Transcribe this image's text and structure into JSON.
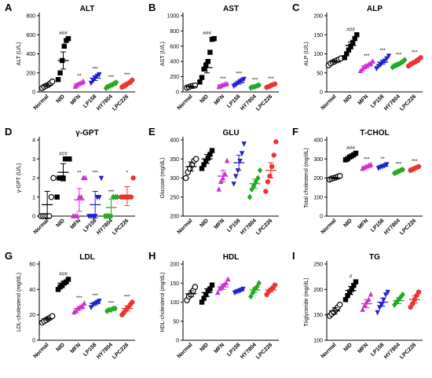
{
  "categories": [
    "Normal",
    "NID",
    "MFN",
    "LP158",
    "HY7804",
    "LPC226"
  ],
  "colors": [
    "#000000",
    "#000000",
    "#cc33cc",
    "#2222cc",
    "#22aa22",
    "#ee3333"
  ],
  "marker_icons": [
    "open-circle-icon",
    "filled-square-icon",
    "filled-triangle-up-icon",
    "filled-triangle-down-icon",
    "filled-diamond-icon",
    "filled-circle-icon"
  ],
  "chart_data": [
    {
      "letter": "A",
      "title": "ALT",
      "type": "scatter",
      "ylabel": "ALT (U/L)",
      "ylim": [
        0,
        800
      ],
      "ticks": [
        0,
        200,
        400,
        600,
        800
      ],
      "points": [
        [
          40,
          55,
          65,
          75,
          90,
          110
        ],
        [
          130,
          200,
          330,
          480,
          540,
          560
        ],
        [
          55,
          70,
          85,
          95,
          110
        ],
        [
          95,
          120,
          145,
          170,
          185
        ],
        [
          40,
          55,
          65,
          75,
          90,
          100
        ],
        [
          50,
          60,
          75,
          90,
          105,
          125
        ]
      ],
      "means": [
        70,
        330,
        85,
        145,
        70,
        85
      ],
      "sems": [
        15,
        90,
        12,
        25,
        10,
        15
      ],
      "sig": [
        "",
        "###",
        "**",
        "***",
        "***",
        "***"
      ]
    },
    {
      "letter": "B",
      "title": "AST",
      "type": "scatter",
      "ylabel": "AST (U/L)",
      "ylim": [
        0,
        1000
      ],
      "ticks": [
        0,
        200,
        400,
        600,
        800,
        1000
      ],
      "points": [
        [
          55,
          65,
          75,
          80,
          85
        ],
        [
          130,
          190,
          300,
          350,
          400,
          520,
          690,
          700
        ],
        [
          65,
          75,
          90,
          100,
          105
        ],
        [
          80,
          95,
          120,
          140,
          155,
          170
        ],
        [
          55,
          65,
          70,
          80,
          90
        ],
        [
          60,
          70,
          85,
          95,
          105
        ]
      ],
      "means": [
        70,
        320,
        90,
        120,
        70,
        85
      ],
      "sems": [
        10,
        70,
        12,
        18,
        8,
        10
      ],
      "sig": [
        "",
        "###",
        "***",
        "***",
        "***",
        "***"
      ]
    },
    {
      "letter": "C",
      "title": "ALP",
      "type": "scatter",
      "ylabel": "ALP (U/L)",
      "ylim": [
        0,
        200
      ],
      "ticks": [
        0,
        50,
        100,
        150,
        200
      ],
      "points": [
        [
          70,
          75,
          78,
          80,
          83,
          85,
          88
        ],
        [
          90,
          100,
          110,
          120,
          130,
          140,
          150
        ],
        [
          55,
          60,
          65,
          68,
          72,
          75,
          80
        ],
        [
          62,
          68,
          72,
          78,
          82,
          88,
          95
        ],
        [
          65,
          68,
          70,
          73,
          76,
          80,
          84
        ],
        [
          68,
          72,
          75,
          78,
          82,
          86,
          90
        ]
      ],
      "means": [
        80,
        122,
        68,
        78,
        74,
        78
      ],
      "sems": [
        3,
        9,
        4,
        5,
        3,
        4
      ],
      "sig": [
        "",
        "###",
        "***",
        "***",
        "***",
        "***"
      ]
    },
    {
      "letter": "D",
      "title": "γ-GPT",
      "type": "scatter",
      "ylabel": "γ-GPT (U/L)",
      "ylim": [
        0,
        4
      ],
      "ticks": [
        0,
        1,
        2,
        3,
        4
      ],
      "points": [
        [
          0,
          0,
          0,
          0,
          0,
          1,
          2
        ],
        [
          1,
          2,
          2,
          2,
          3,
          3,
          3
        ],
        [
          0,
          0,
          0,
          1,
          1,
          2,
          2
        ],
        [
          0,
          0,
          0,
          0,
          1,
          1,
          2
        ],
        [
          0,
          0,
          0,
          0,
          1,
          1,
          1
        ],
        [
          1,
          1,
          1,
          1,
          1,
          1,
          2
        ]
      ],
      "means": [
        0.6,
        2.3,
        0.85,
        0.6,
        0.45,
        1.05
      ],
      "sems": [
        0.7,
        0.45,
        0.6,
        0.7,
        0.45,
        0.5
      ],
      "sig": [
        "",
        "###",
        "**",
        "***",
        "***",
        "*"
      ]
    },
    {
      "letter": "E",
      "title": "GLU",
      "type": "scatter",
      "ylabel": "Glucose (mg/dL)",
      "ylim": [
        200,
        400
      ],
      "ticks": [
        200,
        250,
        300,
        350,
        400
      ],
      "points": [
        [
          300,
          315,
          325,
          335,
          345,
          350
        ],
        [
          325,
          335,
          345,
          352,
          362,
          372
        ],
        [
          270,
          290,
          300,
          310,
          345
        ],
        [
          285,
          305,
          320,
          345,
          365,
          390
        ],
        [
          250,
          270,
          280,
          290,
          300,
          320
        ],
        [
          265,
          290,
          305,
          330,
          360,
          395
        ]
      ],
      "means": [
        330,
        350,
        305,
        340,
        285,
        320
      ],
      "sems": [
        12,
        12,
        15,
        20,
        12,
        20
      ],
      "sig": [
        "",
        "",
        "",
        "",
        "",
        ""
      ]
    },
    {
      "letter": "F",
      "title": "T-CHOL",
      "type": "scatter",
      "ylabel": "Total cholesterol (mg/dL)",
      "ylim": [
        0,
        400
      ],
      "ticks": [
        0,
        100,
        200,
        300,
        400
      ],
      "points": [
        [
          192,
          197,
          200,
          203,
          207,
          211
        ],
        [
          295,
          300,
          310,
          316,
          322,
          330
        ],
        [
          248,
          255,
          260,
          265,
          270
        ],
        [
          252,
          258,
          262,
          266,
          272
        ],
        [
          225,
          230,
          235,
          240,
          245
        ],
        [
          240,
          245,
          250,
          255,
          260
        ]
      ],
      "means": [
        200,
        312,
        258,
        262,
        235,
        252
      ],
      "sems": [
        4,
        8,
        5,
        5,
        4,
        5
      ],
      "sig": [
        "",
        "###",
        "***",
        "**",
        "***",
        "***"
      ]
    },
    {
      "letter": "G",
      "title": "LDL",
      "type": "scatter",
      "ylabel": "LDL-cholesterol (mg/dL)",
      "ylim": [
        0,
        60
      ],
      "ticks": [
        0,
        20,
        40,
        60
      ],
      "points": [
        [
          14,
          15,
          16,
          17,
          18,
          19
        ],
        [
          40,
          42,
          43,
          45,
          46,
          48
        ],
        [
          22,
          23,
          25,
          26,
          27,
          29
        ],
        [
          26,
          28,
          29,
          30,
          31
        ],
        [
          23,
          24,
          24,
          25,
          25
        ],
        [
          20,
          22,
          24,
          26,
          28,
          30
        ]
      ],
      "means": [
        17,
        45,
        25,
        29,
        24,
        25
      ],
      "sems": [
        1,
        1.5,
        1.5,
        1.2,
        0.5,
        2
      ],
      "sig": [
        "",
        "###",
        "***",
        "***",
        "***",
        "***"
      ]
    },
    {
      "letter": "H",
      "title": "HDL",
      "type": "scatter",
      "ylabel": "HDL-cholesterol (mg/dL)",
      "ylim": [
        0,
        200
      ],
      "ticks": [
        0,
        50,
        100,
        150,
        200
      ],
      "points": [
        [
          105,
          115,
          120,
          130,
          140
        ],
        [
          100,
          110,
          120,
          130,
          135,
          145
        ],
        [
          125,
          135,
          140,
          145,
          150,
          160
        ],
        [
          125,
          128,
          130,
          132,
          135
        ],
        [
          115,
          125,
          135,
          140,
          150
        ],
        [
          120,
          128,
          133,
          138,
          145
        ]
      ],
      "means": [
        122,
        125,
        140,
        130,
        132,
        132
      ],
      "sems": [
        8,
        10,
        7,
        3,
        6,
        5
      ],
      "sig": [
        "",
        "",
        "",
        "",
        "",
        ""
      ]
    },
    {
      "letter": "I",
      "title": "TG",
      "type": "scatter",
      "ylabel": "Triglyceride (mg/dL)",
      "ylim": [
        100,
        250
      ],
      "ticks": [
        100,
        150,
        200,
        250
      ],
      "points": [
        [
          148,
          152,
          155,
          160,
          165,
          170
        ],
        [
          180,
          188,
          195,
          200,
          208,
          215
        ],
        [
          160,
          168,
          175,
          180,
          190
        ],
        [
          155,
          165,
          170,
          180,
          190,
          195
        ],
        [
          170,
          175,
          180,
          185,
          190
        ],
        [
          165,
          172,
          180,
          188,
          195
        ]
      ],
      "means": [
        158,
        198,
        172,
        175,
        178,
        180
      ],
      "sems": [
        6,
        8,
        8,
        8,
        6,
        7
      ],
      "sig": [
        "",
        "#",
        "",
        "",
        "",
        ""
      ]
    }
  ]
}
